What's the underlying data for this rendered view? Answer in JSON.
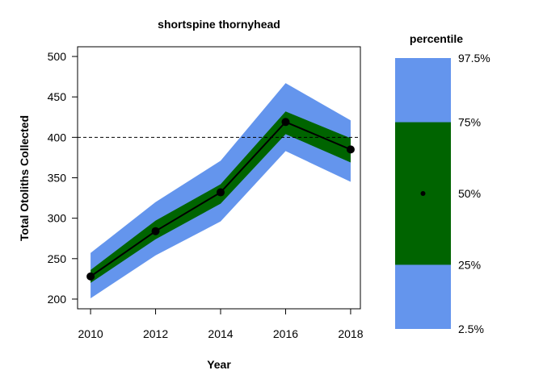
{
  "chart_data": {
    "type": "line",
    "title": "shortspine thornyhead",
    "xlabel": "Year",
    "ylabel": "Total Otoliths Collected",
    "x": [
      2010,
      2012,
      2014,
      2016,
      2018
    ],
    "xticks": [
      "2010",
      "2012",
      "2014",
      "2016",
      "2018"
    ],
    "yticks": [
      "200",
      "250",
      "300",
      "350",
      "400",
      "450",
      "500"
    ],
    "xlim": [
      2009.6,
      2018.3
    ],
    "ylim": [
      188,
      512
    ],
    "median": [
      228,
      284,
      332,
      419,
      385
    ],
    "band_25_75": {
      "lower": [
        220,
        274,
        318,
        404,
        369
      ],
      "upper": [
        236,
        297,
        342,
        432,
        399
      ]
    },
    "band_2_5_97_5": {
      "lower": [
        201,
        254,
        296,
        383,
        345
      ],
      "upper": [
        257,
        320,
        371,
        467,
        421
      ]
    },
    "reference_line": 400,
    "grid": false,
    "colors": {
      "outer_band": "#6495ED",
      "inner_band": "#006400",
      "line": "#000000",
      "reference": "#000000"
    },
    "legend": {
      "title": "percentile",
      "placement": "right",
      "labels": [
        "97.5%",
        "75%",
        "50%",
        "25%",
        "2.5%"
      ],
      "values": [
        97.5,
        75,
        50,
        25,
        2.5
      ]
    }
  }
}
